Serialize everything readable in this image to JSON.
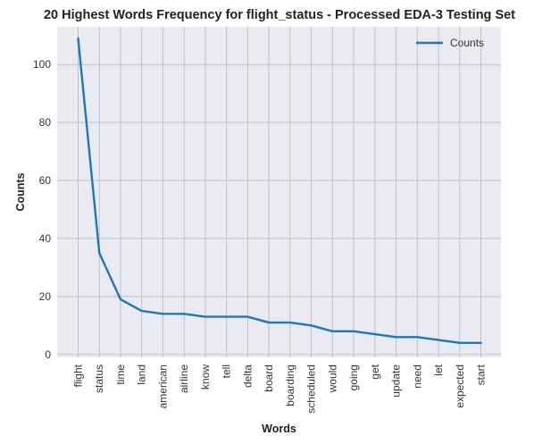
{
  "chart_data": {
    "type": "line",
    "title": "20 Highest Words Frequency for flight_status - Processed EDA-3 Testing Set",
    "xlabel": "Words",
    "ylabel": "Counts",
    "categories": [
      "flight",
      "status",
      "time",
      "land",
      "american",
      "airline",
      "know",
      "tell",
      "delta",
      "board",
      "boarding",
      "scheduled",
      "would",
      "going",
      "get",
      "update",
      "need",
      "let",
      "expected",
      "start"
    ],
    "series": [
      {
        "name": "Counts",
        "color": "#1f77b4",
        "values": [
          109,
          35,
          19,
          15,
          14,
          14,
          13,
          13,
          13,
          11,
          11,
          10,
          8,
          8,
          7,
          6,
          6,
          5,
          4,
          4
        ]
      }
    ],
    "yticks": [
      0,
      20,
      40,
      60,
      80,
      100
    ],
    "ylim": [
      -1,
      113
    ],
    "grid": true,
    "legend_position": "top-right",
    "background": "#eaeaf2",
    "grid_color": "#c0c0c8"
  }
}
